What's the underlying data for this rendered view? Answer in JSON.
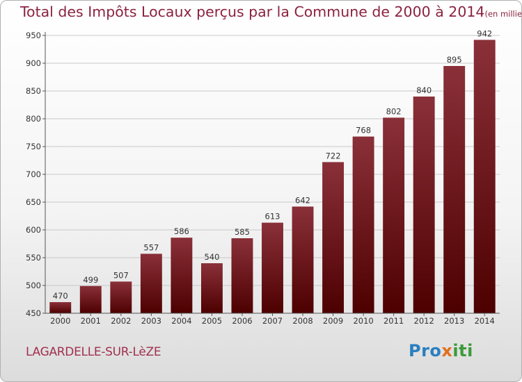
{
  "title": "Total des Impôts Locaux perçus par la Commune de 2000 à 2014",
  "unit_note": "(en milliers d'€)",
  "commune": "LAGARDELLE-SUR-LèZE",
  "brand": {
    "part1": "Pro",
    "part2": "x",
    "part3": "iti"
  },
  "colors": {
    "bar_top": "#8a3039",
    "bar_bottom": "#4d0000",
    "title": "#8b2240",
    "commune": "#a03050",
    "grid": "#c8c8c8"
  },
  "chart_data": {
    "type": "bar",
    "categories": [
      "2000",
      "2001",
      "2002",
      "2003",
      "2004",
      "2005",
      "2006",
      "2007",
      "2008",
      "2009",
      "2010",
      "2011",
      "2012",
      "2013",
      "2014"
    ],
    "values": [
      470,
      499,
      507,
      557,
      586,
      540,
      585,
      613,
      642,
      722,
      768,
      802,
      840,
      895,
      942
    ],
    "title": "Total des Impôts Locaux perçus par la Commune de 2000 à 2014",
    "xlabel": "",
    "ylabel": "",
    "ylim": [
      450,
      950
    ],
    "yticks": [
      450,
      500,
      550,
      600,
      650,
      700,
      750,
      800,
      850,
      900,
      950
    ],
    "grid": true,
    "data_labels": true
  }
}
